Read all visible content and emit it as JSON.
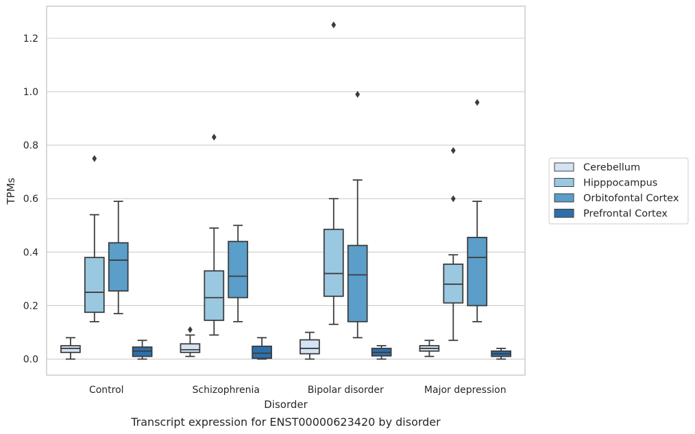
{
  "caption": "Transcript expression for ENST00000623420 by disorder",
  "chart_data": {
    "type": "box",
    "xlabel": "Disorder",
    "ylabel": "TPMs",
    "ylim": [
      -0.06,
      1.32
    ],
    "yticks": [
      0.0,
      0.2,
      0.4,
      0.6,
      0.8,
      1.0,
      1.2
    ],
    "ytick_labels": [
      "0.0",
      "0.2",
      "0.4",
      "0.6",
      "0.8",
      "1.0",
      "1.2"
    ],
    "grid": "horizontal",
    "legend_position": "right",
    "categories": [
      "Control",
      "Schizophrenia",
      "Bipolar disorder",
      "Major depression"
    ],
    "series": [
      {
        "name": "Cerebellum",
        "color": "#d3e3f3",
        "boxes": [
          {
            "whislo": 0.0,
            "q1": 0.025,
            "med": 0.04,
            "q3": 0.05,
            "whishi": 0.08,
            "fliers": []
          },
          {
            "whislo": 0.01,
            "q1": 0.025,
            "med": 0.035,
            "q3": 0.057,
            "whishi": 0.09,
            "fliers": [
              0.11
            ]
          },
          {
            "whislo": 0.0,
            "q1": 0.02,
            "med": 0.04,
            "q3": 0.072,
            "whishi": 0.1,
            "fliers": []
          },
          {
            "whislo": 0.01,
            "q1": 0.03,
            "med": 0.04,
            "q3": 0.05,
            "whishi": 0.07,
            "fliers": []
          }
        ]
      },
      {
        "name": "Hipppocampus",
        "color": "#9ac8e0",
        "boxes": [
          {
            "whislo": 0.14,
            "q1": 0.175,
            "med": 0.25,
            "q3": 0.38,
            "whishi": 0.54,
            "fliers": [
              0.75
            ]
          },
          {
            "whislo": 0.09,
            "q1": 0.145,
            "med": 0.23,
            "q3": 0.33,
            "whishi": 0.49,
            "fliers": [
              0.83
            ]
          },
          {
            "whislo": 0.13,
            "q1": 0.235,
            "med": 0.32,
            "q3": 0.485,
            "whishi": 0.6,
            "fliers": [
              1.25
            ]
          },
          {
            "whislo": 0.07,
            "q1": 0.21,
            "med": 0.28,
            "q3": 0.355,
            "whishi": 0.39,
            "fliers": [
              0.6,
              0.78
            ]
          }
        ]
      },
      {
        "name": "Orbitofontal Cortex",
        "color": "#5a9ec9",
        "boxes": [
          {
            "whislo": 0.17,
            "q1": 0.255,
            "med": 0.37,
            "q3": 0.435,
            "whishi": 0.59,
            "fliers": []
          },
          {
            "whislo": 0.14,
            "q1": 0.23,
            "med": 0.31,
            "q3": 0.44,
            "whishi": 0.5,
            "fliers": []
          },
          {
            "whislo": 0.08,
            "q1": 0.14,
            "med": 0.315,
            "q3": 0.425,
            "whishi": 0.67,
            "fliers": [
              0.99
            ]
          },
          {
            "whislo": 0.14,
            "q1": 0.2,
            "med": 0.38,
            "q3": 0.455,
            "whishi": 0.59,
            "fliers": [
              0.96
            ]
          }
        ]
      },
      {
        "name": "Prefrontal Cortex",
        "color": "#2d6faa",
        "boxes": [
          {
            "whislo": 0.0,
            "q1": 0.01,
            "med": 0.03,
            "q3": 0.045,
            "whishi": 0.07,
            "fliers": []
          },
          {
            "whislo": 0.0,
            "q1": 0.003,
            "med": 0.022,
            "q3": 0.048,
            "whishi": 0.08,
            "fliers": []
          },
          {
            "whislo": 0.0,
            "q1": 0.012,
            "med": 0.025,
            "q3": 0.04,
            "whishi": 0.05,
            "fliers": []
          },
          {
            "whislo": 0.0,
            "q1": 0.01,
            "med": 0.02,
            "q3": 0.03,
            "whishi": 0.04,
            "fliers": []
          }
        ]
      }
    ]
  }
}
